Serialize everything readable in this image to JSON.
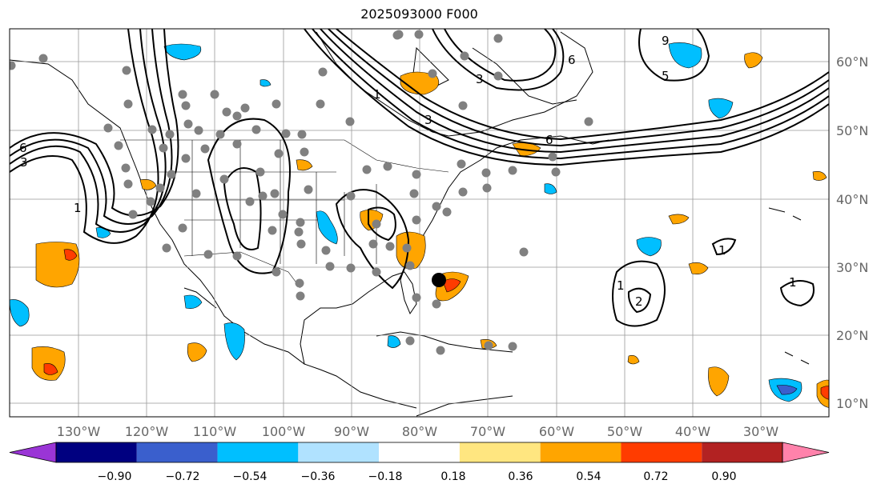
{
  "title": "2025093000 F000",
  "lat_labels": [
    "60°N",
    "50°N",
    "40°N",
    "30°N",
    "20°N",
    "10°N"
  ],
  "lon_labels": [
    "130°W",
    "120°W",
    "110°W",
    "100°W",
    "90°W",
    "80°W",
    "70°W",
    "60°W",
    "50°W",
    "40°W",
    "30°W"
  ],
  "colorbar": {
    "ticks": [
      "−0.90",
      "−0.72",
      "−0.54",
      "−0.36",
      "−0.18",
      "0.18",
      "0.36",
      "0.54",
      "0.72",
      "0.90"
    ],
    "colors": [
      "#9a35d6",
      "#000080",
      "#3a5fcd",
      "#00bfff",
      "#b0e2ff",
      "#ffffff",
      "#ffe680",
      "#ffa500",
      "#ff3c00",
      "#b22222",
      "#ff82ab"
    ]
  },
  "contour_labels": [
    "6",
    "3",
    "1",
    "6",
    "3",
    "1",
    "9",
    "6",
    "3",
    "1",
    "2",
    "1",
    "1",
    "5"
  ]
}
